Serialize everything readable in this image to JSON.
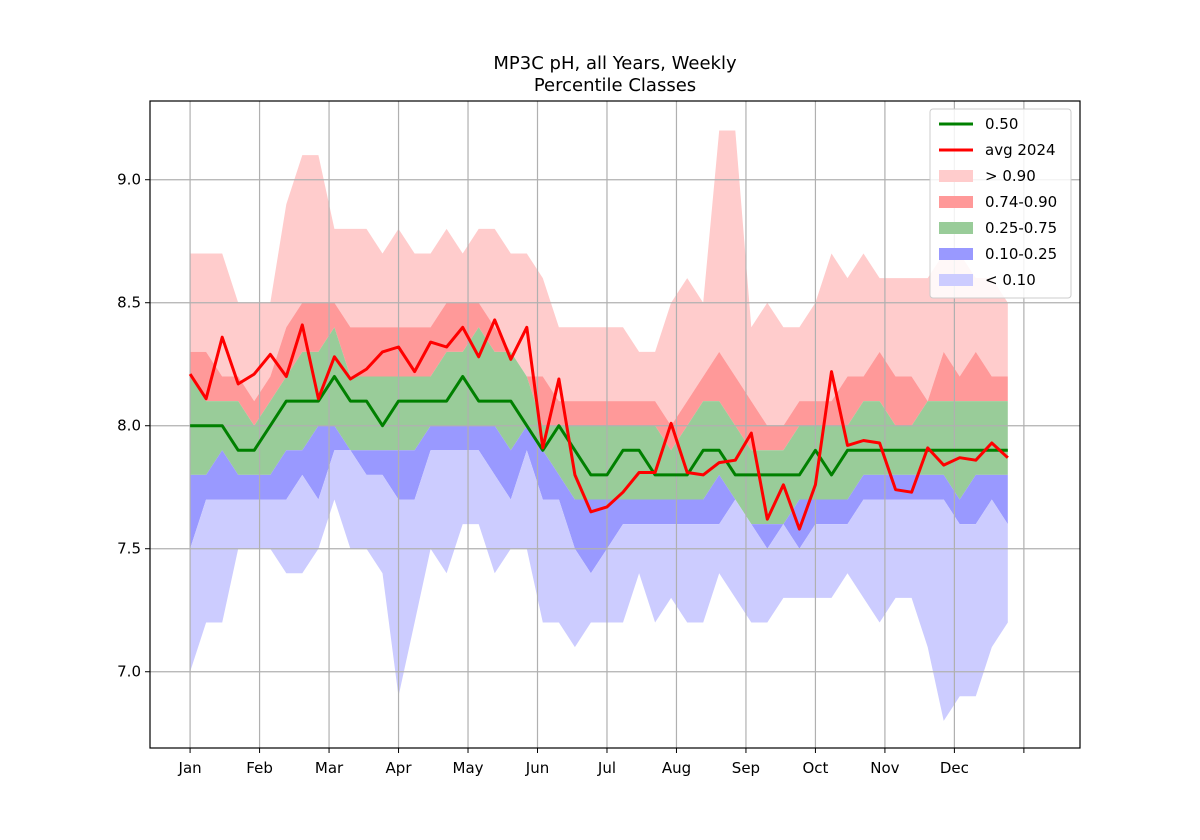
{
  "chart_data": {
    "type": "area",
    "title": "MP3C pH, all Years, Weekly",
    "subtitle": "Percentile Classes",
    "xlabel": "",
    "ylabel": "",
    "x_tick_labels": [
      "Jan",
      "Feb",
      "Mar",
      "Apr",
      "May",
      "Jun",
      "Jul",
      "Aug",
      "Sep",
      "Oct",
      "Nov",
      "Dec",
      ""
    ],
    "y_tick_labels": [
      "7.0",
      "7.5",
      "8.0",
      "8.5",
      "9.0"
    ],
    "ylim": [
      6.69,
      9.32
    ],
    "xlim": [
      -2.5,
      55.5
    ],
    "weeks": [
      0,
      1,
      2,
      3,
      4,
      5,
      6,
      7,
      8,
      9,
      10,
      11,
      12,
      13,
      14,
      15,
      16,
      17,
      18,
      19,
      20,
      21,
      22,
      23,
      24,
      25,
      26,
      27,
      28,
      29,
      30,
      31,
      32,
      33,
      34,
      35,
      36,
      37,
      38,
      39,
      40,
      41,
      42,
      43,
      44,
      45,
      46,
      47,
      48,
      49,
      50,
      51
    ],
    "grid": true,
    "legend_position": "top-right",
    "colors": {
      "median": "#008000",
      "avg": "#ff0000",
      "gt90": "#ffcccc",
      "p74_90": "#ff9999",
      "p25_75": "#99cc99",
      "p10_25": "#9999ff",
      "lt10": "#ccccff"
    },
    "legend": [
      {
        "label": "0.50",
        "kind": "line",
        "color": "#008000"
      },
      {
        "label": "avg 2024",
        "kind": "line",
        "color": "#ff0000"
      },
      {
        "label": "> 0.90",
        "kind": "patch",
        "color": "#ffcccc"
      },
      {
        "label": "0.74-0.90",
        "kind": "patch",
        "color": "#ff9999"
      },
      {
        "label": "0.25-0.75",
        "kind": "patch",
        "color": "#99cc99"
      },
      {
        "label": "0.10-0.25",
        "kind": "patch",
        "color": "#9999ff"
      },
      {
        "label": "< 0.10",
        "kind": "patch",
        "color": "#ccccff"
      }
    ],
    "series": [
      {
        "name": "> 0.90",
        "role": "max",
        "values": [
          8.7,
          8.7,
          8.7,
          8.5,
          8.5,
          8.5,
          8.9,
          9.1,
          9.1,
          8.8,
          8.8,
          8.8,
          8.7,
          8.8,
          8.7,
          8.7,
          8.8,
          8.7,
          8.8,
          8.8,
          8.7,
          8.7,
          8.6,
          8.4,
          8.4,
          8.4,
          8.4,
          8.4,
          8.3,
          8.3,
          8.5,
          8.6,
          8.5,
          9.2,
          9.2,
          8.4,
          8.5,
          8.4,
          8.4,
          8.5,
          8.7,
          8.6,
          8.7,
          8.6,
          8.6,
          8.6,
          8.6,
          8.7,
          8.7,
          8.6,
          8.6,
          8.5
        ]
      },
      {
        "name": "0.74-0.90",
        "role": "p90",
        "values": [
          8.3,
          8.3,
          8.2,
          8.2,
          8.1,
          8.2,
          8.4,
          8.5,
          8.5,
          8.5,
          8.4,
          8.4,
          8.4,
          8.4,
          8.4,
          8.4,
          8.5,
          8.5,
          8.5,
          8.4,
          8.3,
          8.2,
          8.2,
          8.1,
          8.1,
          8.1,
          8.1,
          8.1,
          8.1,
          8.1,
          8.0,
          8.1,
          8.2,
          8.3,
          8.2,
          8.1,
          8.0,
          8.0,
          8.1,
          8.1,
          8.1,
          8.2,
          8.2,
          8.3,
          8.2,
          8.2,
          8.1,
          8.3,
          8.2,
          8.3,
          8.2,
          8.2
        ]
      },
      {
        "name": "0.25-0.75",
        "role": "p74",
        "values": [
          8.2,
          8.1,
          8.1,
          8.1,
          8.0,
          8.1,
          8.2,
          8.3,
          8.3,
          8.4,
          8.2,
          8.2,
          8.2,
          8.2,
          8.2,
          8.2,
          8.3,
          8.3,
          8.4,
          8.3,
          8.3,
          8.2,
          8.0,
          8.0,
          8.0,
          8.0,
          8.0,
          8.0,
          8.0,
          8.0,
          7.9,
          8.0,
          8.1,
          8.1,
          8.0,
          7.9,
          7.9,
          7.9,
          8.0,
          8.0,
          8.0,
          8.0,
          8.1,
          8.1,
          8.0,
          8.0,
          8.1,
          8.1,
          8.1,
          8.1,
          8.1,
          8.1
        ]
      },
      {
        "name": "0.10-0.25",
        "role": "p25",
        "values": [
          7.8,
          7.8,
          7.9,
          7.8,
          7.8,
          7.8,
          7.9,
          7.9,
          8.0,
          8.0,
          7.9,
          7.9,
          7.9,
          7.9,
          7.9,
          8.0,
          8.0,
          8.0,
          8.0,
          8.0,
          7.9,
          8.0,
          7.9,
          7.8,
          7.7,
          7.7,
          7.7,
          7.7,
          7.7,
          7.7,
          7.7,
          7.7,
          7.7,
          7.8,
          7.7,
          7.6,
          7.6,
          7.6,
          7.7,
          7.7,
          7.7,
          7.7,
          7.8,
          7.8,
          7.8,
          7.8,
          7.8,
          7.8,
          7.7,
          7.8,
          7.8,
          7.8
        ]
      },
      {
        "name": "< 0.10",
        "role": "p10",
        "values": [
          7.5,
          7.7,
          7.7,
          7.7,
          7.7,
          7.7,
          7.7,
          7.8,
          7.7,
          7.9,
          7.9,
          7.8,
          7.8,
          7.7,
          7.7,
          7.9,
          7.9,
          7.9,
          7.9,
          7.8,
          7.7,
          7.9,
          7.7,
          7.7,
          7.5,
          7.4,
          7.5,
          7.6,
          7.6,
          7.6,
          7.6,
          7.6,
          7.6,
          7.6,
          7.7,
          7.6,
          7.5,
          7.6,
          7.5,
          7.6,
          7.6,
          7.6,
          7.7,
          7.7,
          7.7,
          7.7,
          7.7,
          7.7,
          7.6,
          7.6,
          7.7,
          7.6
        ]
      },
      {
        "name": "",
        "role": "min",
        "values": [
          7.0,
          7.2,
          7.2,
          7.5,
          7.5,
          7.5,
          7.4,
          7.4,
          7.5,
          7.7,
          7.5,
          7.5,
          7.4,
          6.9,
          7.2,
          7.5,
          7.4,
          7.6,
          7.6,
          7.4,
          7.5,
          7.5,
          7.2,
          7.2,
          7.1,
          7.2,
          7.2,
          7.2,
          7.4,
          7.2,
          7.3,
          7.2,
          7.2,
          7.4,
          7.3,
          7.2,
          7.2,
          7.3,
          7.3,
          7.3,
          7.3,
          7.4,
          7.3,
          7.2,
          7.3,
          7.3,
          7.1,
          6.8,
          6.9,
          6.9,
          7.1,
          7.2
        ]
      },
      {
        "name": "0.50",
        "role": "median",
        "values": [
          8.0,
          8.0,
          8.0,
          7.9,
          7.9,
          8.0,
          8.1,
          8.1,
          8.1,
          8.2,
          8.1,
          8.1,
          8.0,
          8.1,
          8.1,
          8.1,
          8.1,
          8.2,
          8.1,
          8.1,
          8.1,
          8.0,
          7.9,
          8.0,
          7.9,
          7.8,
          7.8,
          7.9,
          7.9,
          7.8,
          7.8,
          7.8,
          7.9,
          7.9,
          7.8,
          7.8,
          7.8,
          7.8,
          7.8,
          7.9,
          7.8,
          7.9,
          7.9,
          7.9,
          7.9,
          7.9,
          7.9,
          7.9,
          7.9,
          7.9,
          7.9,
          7.9
        ]
      },
      {
        "name": "avg 2024",
        "role": "avg",
        "values": [
          8.21,
          8.11,
          8.36,
          8.17,
          8.21,
          8.29,
          8.2,
          8.41,
          8.11,
          8.28,
          8.19,
          8.23,
          8.3,
          8.32,
          8.22,
          8.34,
          8.32,
          8.4,
          8.28,
          8.43,
          8.27,
          8.4,
          7.91,
          8.19,
          7.8,
          7.65,
          7.67,
          7.73,
          7.81,
          7.81,
          8.01,
          7.81,
          7.8,
          7.85,
          7.86,
          7.97,
          7.62,
          7.76,
          7.58,
          7.76,
          8.22,
          7.92,
          7.94,
          7.93,
          7.74,
          7.73,
          7.91,
          7.84,
          7.87,
          7.86,
          7.93,
          7.87
        ]
      }
    ]
  }
}
